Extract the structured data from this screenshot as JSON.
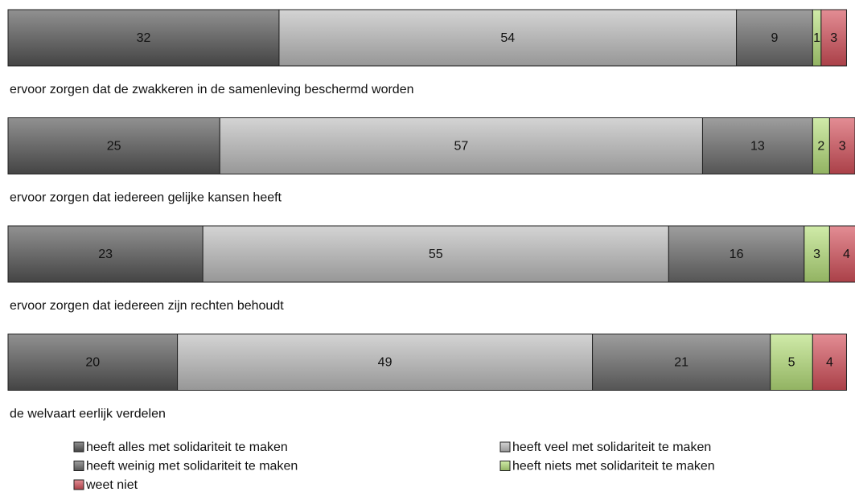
{
  "chart_data": {
    "type": "stacked-barh",
    "categories": [
      "ervoor zorgen dat de zwakkeren in de samenleving beschermd worden",
      "ervoor zorgen dat iedereen gelijke kansen heeft",
      "ervoor zorgen dat iedereen zijn rechten behoudt",
      "de welvaart eerlijk verdelen"
    ],
    "series": [
      {
        "name": "heeft alles met solidariteit te maken",
        "color": "#555555",
        "values": [
          32,
          25,
          23,
          20
        ]
      },
      {
        "name": "heeft veel met solidariteit te maken",
        "color": "#bdbdbd",
        "values": [
          54,
          57,
          55,
          49
        ]
      },
      {
        "name": "heeft weinig met solidariteit te maken",
        "color": "#6a6a6a",
        "values": [
          9,
          13,
          16,
          21
        ]
      },
      {
        "name": "heeft niets met solidariteit te maken",
        "color": "#b7e07a",
        "values": [
          1,
          2,
          3,
          5
        ]
      },
      {
        "name": "weet niet",
        "color": "#d4505a",
        "values": [
          3,
          3,
          4,
          4
        ]
      }
    ],
    "xlim": [
      0,
      100
    ],
    "legend": "bottom"
  }
}
